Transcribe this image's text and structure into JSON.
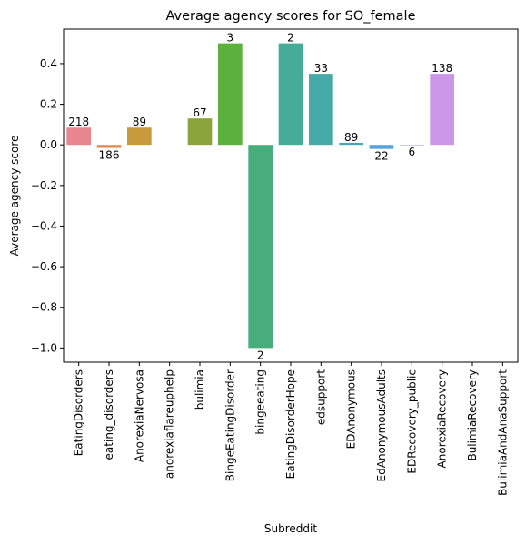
{
  "chart_data": {
    "type": "bar",
    "title": "Average agency scores for SO_female",
    "xlabel": "Subreddit",
    "ylabel": "Average agency score",
    "ylim": [
      -1.07,
      0.57
    ],
    "yticks": [
      -1.0,
      -0.8,
      -0.6,
      -0.4,
      -0.2,
      0.0,
      0.2,
      0.4
    ],
    "ytick_labels": [
      "−1.0",
      "−0.8",
      "−0.6",
      "−0.4",
      "−0.2",
      "0.0",
      "0.2",
      "0.4"
    ],
    "grid": false,
    "categories": [
      "EatingDisorders",
      "eating_disorders",
      "AnorexiaNervosa",
      "anorexiaflareuphelp",
      "bulimia",
      "BingeEatingDisorder",
      "bingeeating",
      "EatingDisorderHope",
      "edsupport",
      "EDAnonymous",
      "EdAnonymousAdults",
      "EDRecovery_public",
      "AnorexiaRecovery",
      "BulimiaRecovery",
      "BulimiaAndAnaSupport"
    ],
    "values": [
      0.085,
      -0.015,
      0.085,
      null,
      0.13,
      0.5,
      -1.0,
      0.5,
      0.35,
      0.01,
      -0.02,
      0.0,
      0.35,
      null,
      null
    ],
    "bar_labels": [
      "218",
      "186",
      "89",
      "",
      "67",
      "3",
      "2",
      "2",
      "33",
      "89",
      "22",
      "6",
      "138",
      "",
      ""
    ],
    "colors": [
      "#e8868f",
      "#dd8c52",
      "#c99a3c",
      "#a99f3b",
      "#8aa43b",
      "#5bb13b",
      "#47ae7b",
      "#44ac97",
      "#45aaa8",
      "#45a7bb",
      "#59a3dc",
      "#9296e4",
      "#cc97e8",
      "#e88bd1",
      "#ec8bb1"
    ]
  }
}
